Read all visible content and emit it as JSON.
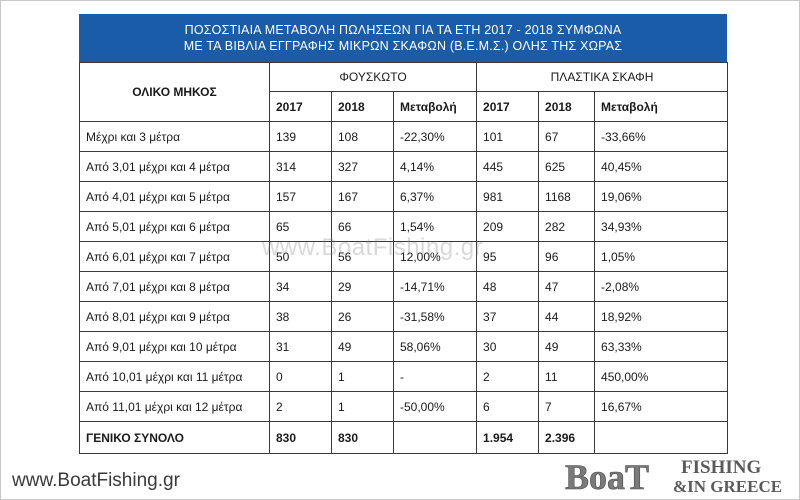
{
  "title": {
    "line1": "ΠΟΣΟΣΤΙΑΙΑ ΜΕΤΑΒΟΛΗ ΠΩΛΗΣΕΩΝ ΓΙΑ ΤΑ ΕΤΗ 2017 - 2018 ΣΥΜΦΩΝΑ",
    "line2": "ΜΕ ΤΑ ΒΙΒΛΙΑ ΕΓΓΡΑΦΗΣ ΜΙΚΡΩΝ ΣΚΑΦΩΝ (Β.Ε.Μ.Σ.) ΟΛΗΣ ΤΗΣ ΧΩΡΑΣ"
  },
  "headers": {
    "length": "ΟΛΙΚΟ ΜΗΚΟΣ",
    "group1": "ΦΟΥΣΚΩΤΟ",
    "group2": "ΠΛΑΣΤΙΚΑ ΣΚΑΦΗ",
    "year1": "2017",
    "year2": "2018",
    "change": "Μεταβολή"
  },
  "rows": [
    {
      "label": "Μέχρι και 3 μέτρα",
      "f17": "139",
      "f18": "108",
      "fch": "-22,30%",
      "p17": "101",
      "p18": "67",
      "pch": "-33,66%"
    },
    {
      "label": "Από 3,01 μέχρι και 4 μέτρα",
      "f17": "314",
      "f18": "327",
      "fch": "4,14%",
      "p17": "445",
      "p18": "625",
      "pch": "40,45%"
    },
    {
      "label": "Από 4,01 μέχρι και 5 μέτρα",
      "f17": "157",
      "f18": "167",
      "fch": "6,37%",
      "p17": "981",
      "p18": "1168",
      "pch": "19,06%"
    },
    {
      "label": "Από 5,01 μέχρι και 6 μέτρα",
      "f17": "65",
      "f18": "66",
      "fch": "1,54%",
      "p17": "209",
      "p18": "282",
      "pch": "34,93%"
    },
    {
      "label": "Από 6,01 μέχρι και 7 μέτρα",
      "f17": "50",
      "f18": "56",
      "fch": "12,00%",
      "p17": "95",
      "p18": "96",
      "pch": "1,05%"
    },
    {
      "label": "Από 7,01 μέχρι και 8 μέτρα",
      "f17": "34",
      "f18": "29",
      "fch": "-14,71%",
      "p17": "48",
      "p18": "47",
      "pch": "-2,08%"
    },
    {
      "label": "Από 8,01 μέχρι και 9 μέτρα",
      "f17": "38",
      "f18": "26",
      "fch": "-31,58%",
      "p17": "37",
      "p18": "44",
      "pch": "18,92%"
    },
    {
      "label": "Από 9,01 μέχρι και 10 μέτρα",
      "f17": "31",
      "f18": "49",
      "fch": "58,06%",
      "p17": "30",
      "p18": "49",
      "pch": "63,33%"
    },
    {
      "label": "Από 10,01 μέχρι και 11 μέτρα",
      "f17": "0",
      "f18": "1",
      "fch": "-",
      "p17": "2",
      "p18": "11",
      "pch": "450,00%"
    },
    {
      "label": "Από 11,01 μέχρι και 12 μέτρα",
      "f17": "2",
      "f18": "1",
      "fch": "-50,00%",
      "p17": "6",
      "p18": "7",
      "pch": "16,67%"
    }
  ],
  "total": {
    "label": "ΓΕΝΙΚΟ ΣΥΝΟΛΟ",
    "f17": "830",
    "f18": "830",
    "fch": "",
    "p17": "1.954",
    "p18": "2.396",
    "pch": ""
  },
  "watermark": "www.BoatFishing.gr",
  "footer": {
    "site": "www.BoatFishing.gr",
    "logo_main": "BoaT",
    "logo_sub1": "FISHING",
    "logo_sub2": "&IN GREECE"
  },
  "colors": {
    "title_bg": "#1a5ca8",
    "title_text": "#ffffff",
    "border": "#3a3a3a"
  }
}
